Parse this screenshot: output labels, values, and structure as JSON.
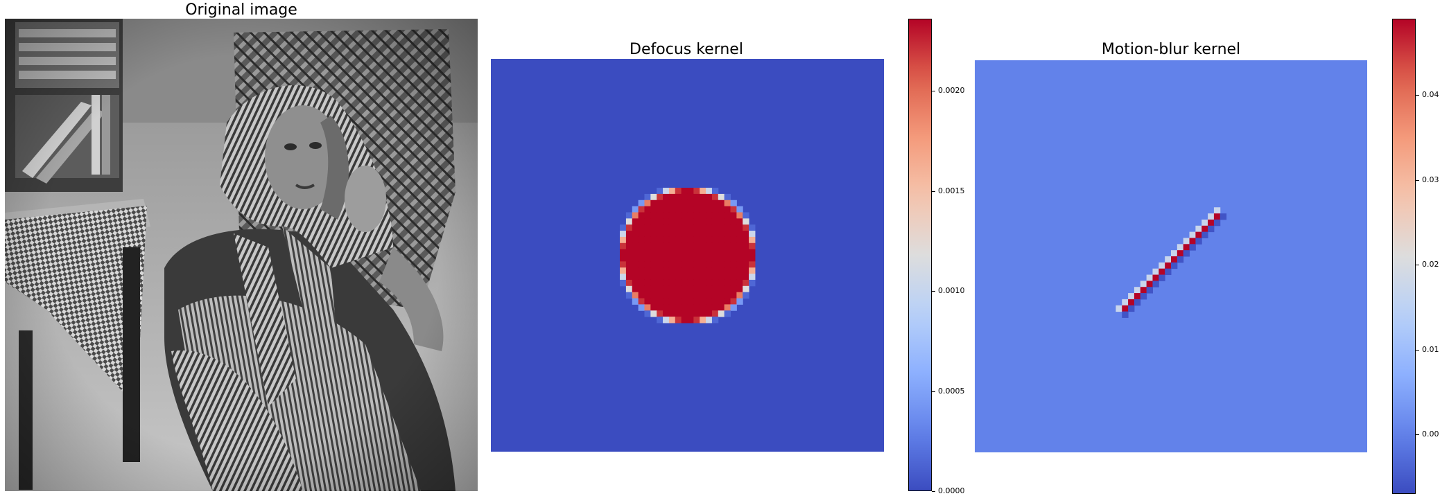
{
  "panels": [
    {
      "title": "Original image"
    },
    {
      "title": "Defocus kernel"
    },
    {
      "title": "Motion-blur kernel"
    }
  ],
  "chart_data": [
    {
      "type": "image",
      "title": "Original image",
      "colormap": "gray",
      "axes_visible": false
    },
    {
      "type": "heatmap",
      "title": "Defocus kernel",
      "colormap": "coolwarm",
      "grid_size": [
        64,
        64
      ],
      "shape": "disk",
      "center": [
        31.5,
        31.5
      ],
      "radius": 10.5,
      "value_inside": 0.00236,
      "value_outside": 0.0,
      "vmin": 0.0,
      "vmax": 0.00236,
      "colorbar_ticks": [
        "0.0000",
        "0.0005",
        "0.0010",
        "0.0015",
        "0.0020"
      ],
      "colorbar_tick_values": [
        0.0,
        0.0005,
        0.001,
        0.0015,
        0.002
      ],
      "axes_visible": false
    },
    {
      "type": "heatmap",
      "title": "Motion-blur kernel",
      "colormap": "coolwarm",
      "grid_size": [
        64,
        64
      ],
      "shape": "diagonal line",
      "line_start": [
        24,
        40
      ],
      "line_end": [
        39,
        25
      ],
      "value_line": 0.049,
      "value_edge": -0.006,
      "value_background": 0.0,
      "vmin": -0.007,
      "vmax": 0.049,
      "colorbar_ticks": [
        "0.00",
        "0.01",
        "0.02",
        "0.03",
        "0.04"
      ],
      "colorbar_tick_values": [
        0.0,
        0.01,
        0.02,
        0.03,
        0.04
      ],
      "axes_visible": false
    }
  ]
}
